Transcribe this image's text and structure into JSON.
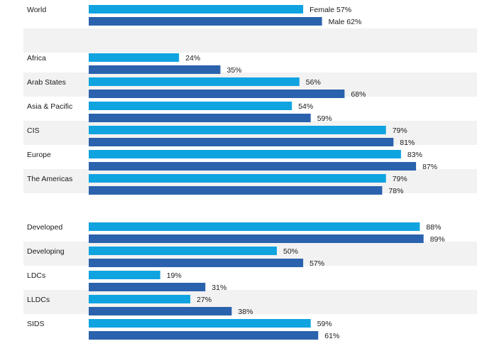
{
  "chart_data": {
    "type": "bar",
    "orientation": "horizontal",
    "grid": false,
    "legend": "inline",
    "colors": {
      "female": "#0fa3e0",
      "male": "#2a62ad",
      "band": "#f2f2f2"
    },
    "series": [
      {
        "name": "Female",
        "key": "female"
      },
      {
        "name": "Male",
        "key": "male"
      }
    ],
    "groups": [
      {
        "rows": [
          {
            "label": "World",
            "female": 57,
            "male": 62
          }
        ]
      },
      {
        "rows": [
          {
            "label": "Africa",
            "female": 24,
            "male": 35
          },
          {
            "label": "Arab States",
            "female": 56,
            "male": 68
          },
          {
            "label": "Asia & Pacific",
            "female": 54,
            "male": 59
          },
          {
            "label": "CIS",
            "female": 79,
            "male": 81
          },
          {
            "label": "Europe",
            "female": 83,
            "male": 87
          },
          {
            "label": "The Americas",
            "female": 79,
            "male": 78
          }
        ]
      },
      {
        "rows": [
          {
            "label": "Developed",
            "female": 88,
            "male": 89
          },
          {
            "label": "Developing",
            "female": 50,
            "male": 57
          },
          {
            "label": "LDCs",
            "female": 19,
            "male": 31
          },
          {
            "label": "LLDCs",
            "female": 27,
            "male": 38
          },
          {
            "label": "SIDS",
            "female": 59,
            "male": 61
          }
        ]
      }
    ],
    "value_suffix": "%",
    "xlim": [
      0,
      100
    ]
  }
}
